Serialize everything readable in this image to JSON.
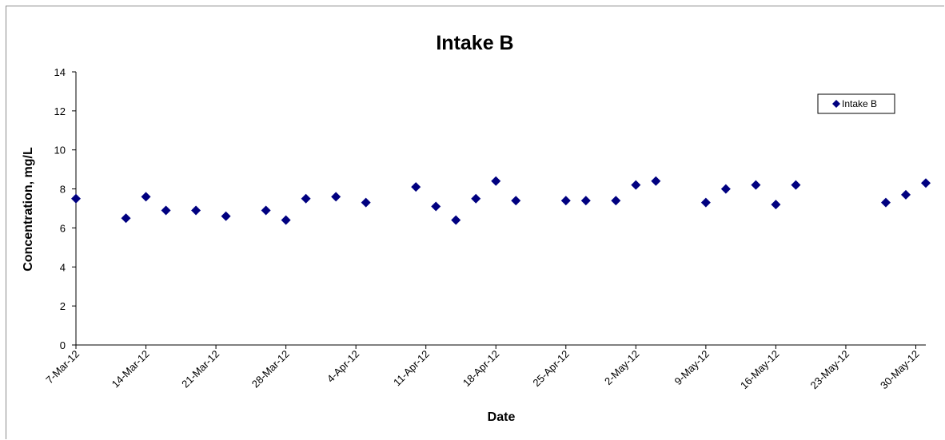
{
  "chart_data": {
    "type": "scatter",
    "title": "Intake B",
    "xlabel": "Date",
    "ylabel": "Concentration, mg/L",
    "ylim": [
      0,
      14
    ],
    "yticks": [
      0,
      2,
      4,
      6,
      8,
      10,
      12,
      14
    ],
    "xlim": [
      "2012-03-07",
      "2012-05-31"
    ],
    "xtick_labels": [
      "7-Mar-12",
      "14-Mar-12",
      "21-Mar-12",
      "28-Mar-12",
      "4-Apr-12",
      "11-Apr-12",
      "18-Apr-12",
      "25-Apr-12",
      "2-May-12",
      "9-May-12",
      "16-May-12",
      "23-May-12",
      "30-May-12"
    ],
    "grid": false,
    "legend_position": "top-right",
    "marker_color": "#000080",
    "series": [
      {
        "name": "Intake B",
        "points": [
          {
            "x": "2012-03-07",
            "y": 7.5
          },
          {
            "x": "2012-03-12",
            "y": 6.5
          },
          {
            "x": "2012-03-14",
            "y": 7.6
          },
          {
            "x": "2012-03-16",
            "y": 6.9
          },
          {
            "x": "2012-03-19",
            "y": 6.9
          },
          {
            "x": "2012-03-22",
            "y": 6.6
          },
          {
            "x": "2012-03-26",
            "y": 6.9
          },
          {
            "x": "2012-03-28",
            "y": 6.4
          },
          {
            "x": "2012-03-30",
            "y": 7.5
          },
          {
            "x": "2012-04-02",
            "y": 7.6
          },
          {
            "x": "2012-04-05",
            "y": 7.3
          },
          {
            "x": "2012-04-10",
            "y": 8.1
          },
          {
            "x": "2012-04-12",
            "y": 7.1
          },
          {
            "x": "2012-04-14",
            "y": 6.4
          },
          {
            "x": "2012-04-16",
            "y": 7.5
          },
          {
            "x": "2012-04-18",
            "y": 8.4
          },
          {
            "x": "2012-04-20",
            "y": 7.4
          },
          {
            "x": "2012-04-25",
            "y": 7.4
          },
          {
            "x": "2012-04-27",
            "y": 7.4
          },
          {
            "x": "2012-04-30",
            "y": 7.4
          },
          {
            "x": "2012-05-02",
            "y": 8.2
          },
          {
            "x": "2012-05-04",
            "y": 8.4
          },
          {
            "x": "2012-05-09",
            "y": 7.3
          },
          {
            "x": "2012-05-11",
            "y": 8.0
          },
          {
            "x": "2012-05-14",
            "y": 8.2
          },
          {
            "x": "2012-05-16",
            "y": 7.2
          },
          {
            "x": "2012-05-18",
            "y": 8.2
          },
          {
            "x": "2012-05-27",
            "y": 7.3
          },
          {
            "x": "2012-05-29",
            "y": 7.7
          },
          {
            "x": "2012-05-31",
            "y": 8.3
          }
        ]
      }
    ]
  }
}
